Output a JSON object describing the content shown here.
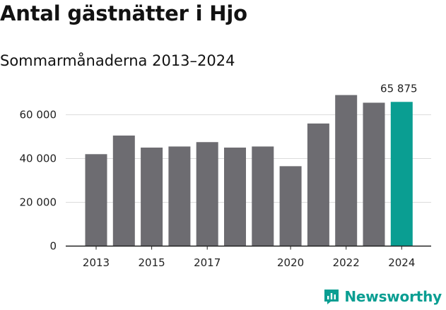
{
  "title": "Antal gästnätter i Hjo",
  "subtitle": "Sommarmånaderna 2013–2024",
  "brand": "Newsworthy",
  "colors": {
    "bar": "#6d6c71",
    "highlight": "#0a9e92",
    "grid": "#dcdcdc",
    "axis": "#222222",
    "text": "#222222"
  },
  "chart_data": {
    "type": "bar",
    "categories": [
      "2013",
      "2014",
      "2015",
      "2016",
      "2017",
      "2018",
      "2019",
      "2020",
      "2021",
      "2022",
      "2023",
      "2024"
    ],
    "values": [
      42000,
      50500,
      45000,
      45500,
      47500,
      45000,
      45500,
      36500,
      56000,
      69000,
      65500,
      65875
    ],
    "highlight_index": 11,
    "xticks": [
      "2013",
      "2015",
      "2017",
      "2020",
      "2022",
      "2024"
    ],
    "yticks": [
      0,
      20000,
      40000,
      60000
    ],
    "ytick_labels": [
      "0",
      "20 000",
      "40 000",
      "60 000"
    ],
    "ylim": [
      0,
      70000
    ],
    "annotation": "65 875",
    "grid": true
  }
}
